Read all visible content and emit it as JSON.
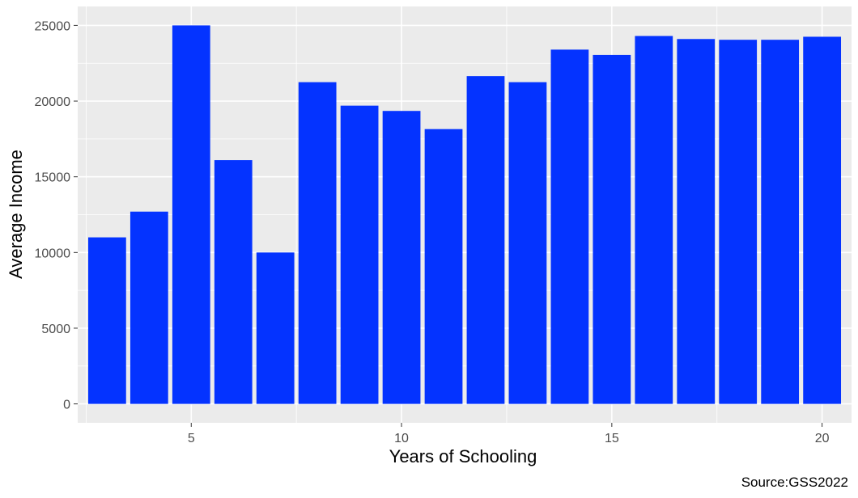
{
  "chart_data": {
    "type": "bar",
    "title": "",
    "xlabel": "Years of Schooling",
    "ylabel": "Average Income",
    "caption": "Source:GSS2022",
    "x": [
      3,
      4,
      5,
      6,
      7,
      8,
      9,
      10,
      11,
      12,
      13,
      14,
      15,
      16,
      17,
      18,
      19,
      20
    ],
    "values": [
      11000,
      12700,
      25000,
      16100,
      10000,
      21250,
      19700,
      19350,
      18150,
      21650,
      21250,
      23400,
      23050,
      24300,
      24100,
      24050,
      24050,
      24250
    ],
    "xlim": [
      2.3,
      20.7
    ],
    "ylim": [
      -1250,
      26250
    ],
    "x_ticks": [
      5,
      10,
      15,
      20
    ],
    "x_tick_labels": [
      "5",
      "10",
      "15",
      "20"
    ],
    "y_ticks": [
      0,
      5000,
      10000,
      15000,
      20000,
      25000
    ],
    "y_tick_labels": [
      "0",
      "5000",
      "10000",
      "15000",
      "20000",
      "25000"
    ],
    "bar_color": "#0433FF",
    "panel_background": "#EBEBEB",
    "grid": true,
    "grid_color": "#FFFFFF"
  }
}
